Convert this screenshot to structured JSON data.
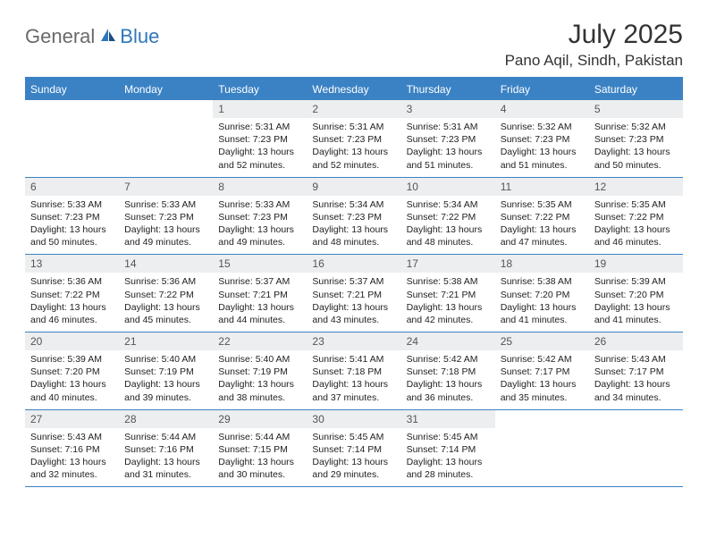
{
  "brand": {
    "general": "General",
    "blue": "Blue"
  },
  "title": "July 2025",
  "location": "Pano Aqil, Sindh, Pakistan",
  "colors": {
    "header_bar": "#3b82c4",
    "daynum_bg": "#eceeef",
    "text": "#333333",
    "logo_gray": "#6a6a6a",
    "logo_blue": "#2f77bb"
  },
  "dow": [
    "Sunday",
    "Monday",
    "Tuesday",
    "Wednesday",
    "Thursday",
    "Friday",
    "Saturday"
  ],
  "weeks": [
    [
      null,
      null,
      {
        "n": "1",
        "sunrise": "Sunrise: 5:31 AM",
        "sunset": "Sunset: 7:23 PM",
        "day": "Daylight: 13 hours and 52 minutes."
      },
      {
        "n": "2",
        "sunrise": "Sunrise: 5:31 AM",
        "sunset": "Sunset: 7:23 PM",
        "day": "Daylight: 13 hours and 52 minutes."
      },
      {
        "n": "3",
        "sunrise": "Sunrise: 5:31 AM",
        "sunset": "Sunset: 7:23 PM",
        "day": "Daylight: 13 hours and 51 minutes."
      },
      {
        "n": "4",
        "sunrise": "Sunrise: 5:32 AM",
        "sunset": "Sunset: 7:23 PM",
        "day": "Daylight: 13 hours and 51 minutes."
      },
      {
        "n": "5",
        "sunrise": "Sunrise: 5:32 AM",
        "sunset": "Sunset: 7:23 PM",
        "day": "Daylight: 13 hours and 50 minutes."
      }
    ],
    [
      {
        "n": "6",
        "sunrise": "Sunrise: 5:33 AM",
        "sunset": "Sunset: 7:23 PM",
        "day": "Daylight: 13 hours and 50 minutes."
      },
      {
        "n": "7",
        "sunrise": "Sunrise: 5:33 AM",
        "sunset": "Sunset: 7:23 PM",
        "day": "Daylight: 13 hours and 49 minutes."
      },
      {
        "n": "8",
        "sunrise": "Sunrise: 5:33 AM",
        "sunset": "Sunset: 7:23 PM",
        "day": "Daylight: 13 hours and 49 minutes."
      },
      {
        "n": "9",
        "sunrise": "Sunrise: 5:34 AM",
        "sunset": "Sunset: 7:23 PM",
        "day": "Daylight: 13 hours and 48 minutes."
      },
      {
        "n": "10",
        "sunrise": "Sunrise: 5:34 AM",
        "sunset": "Sunset: 7:22 PM",
        "day": "Daylight: 13 hours and 48 minutes."
      },
      {
        "n": "11",
        "sunrise": "Sunrise: 5:35 AM",
        "sunset": "Sunset: 7:22 PM",
        "day": "Daylight: 13 hours and 47 minutes."
      },
      {
        "n": "12",
        "sunrise": "Sunrise: 5:35 AM",
        "sunset": "Sunset: 7:22 PM",
        "day": "Daylight: 13 hours and 46 minutes."
      }
    ],
    [
      {
        "n": "13",
        "sunrise": "Sunrise: 5:36 AM",
        "sunset": "Sunset: 7:22 PM",
        "day": "Daylight: 13 hours and 46 minutes."
      },
      {
        "n": "14",
        "sunrise": "Sunrise: 5:36 AM",
        "sunset": "Sunset: 7:22 PM",
        "day": "Daylight: 13 hours and 45 minutes."
      },
      {
        "n": "15",
        "sunrise": "Sunrise: 5:37 AM",
        "sunset": "Sunset: 7:21 PM",
        "day": "Daylight: 13 hours and 44 minutes."
      },
      {
        "n": "16",
        "sunrise": "Sunrise: 5:37 AM",
        "sunset": "Sunset: 7:21 PM",
        "day": "Daylight: 13 hours and 43 minutes."
      },
      {
        "n": "17",
        "sunrise": "Sunrise: 5:38 AM",
        "sunset": "Sunset: 7:21 PM",
        "day": "Daylight: 13 hours and 42 minutes."
      },
      {
        "n": "18",
        "sunrise": "Sunrise: 5:38 AM",
        "sunset": "Sunset: 7:20 PM",
        "day": "Daylight: 13 hours and 41 minutes."
      },
      {
        "n": "19",
        "sunrise": "Sunrise: 5:39 AM",
        "sunset": "Sunset: 7:20 PM",
        "day": "Daylight: 13 hours and 41 minutes."
      }
    ],
    [
      {
        "n": "20",
        "sunrise": "Sunrise: 5:39 AM",
        "sunset": "Sunset: 7:20 PM",
        "day": "Daylight: 13 hours and 40 minutes."
      },
      {
        "n": "21",
        "sunrise": "Sunrise: 5:40 AM",
        "sunset": "Sunset: 7:19 PM",
        "day": "Daylight: 13 hours and 39 minutes."
      },
      {
        "n": "22",
        "sunrise": "Sunrise: 5:40 AM",
        "sunset": "Sunset: 7:19 PM",
        "day": "Daylight: 13 hours and 38 minutes."
      },
      {
        "n": "23",
        "sunrise": "Sunrise: 5:41 AM",
        "sunset": "Sunset: 7:18 PM",
        "day": "Daylight: 13 hours and 37 minutes."
      },
      {
        "n": "24",
        "sunrise": "Sunrise: 5:42 AM",
        "sunset": "Sunset: 7:18 PM",
        "day": "Daylight: 13 hours and 36 minutes."
      },
      {
        "n": "25",
        "sunrise": "Sunrise: 5:42 AM",
        "sunset": "Sunset: 7:17 PM",
        "day": "Daylight: 13 hours and 35 minutes."
      },
      {
        "n": "26",
        "sunrise": "Sunrise: 5:43 AM",
        "sunset": "Sunset: 7:17 PM",
        "day": "Daylight: 13 hours and 34 minutes."
      }
    ],
    [
      {
        "n": "27",
        "sunrise": "Sunrise: 5:43 AM",
        "sunset": "Sunset: 7:16 PM",
        "day": "Daylight: 13 hours and 32 minutes."
      },
      {
        "n": "28",
        "sunrise": "Sunrise: 5:44 AM",
        "sunset": "Sunset: 7:16 PM",
        "day": "Daylight: 13 hours and 31 minutes."
      },
      {
        "n": "29",
        "sunrise": "Sunrise: 5:44 AM",
        "sunset": "Sunset: 7:15 PM",
        "day": "Daylight: 13 hours and 30 minutes."
      },
      {
        "n": "30",
        "sunrise": "Sunrise: 5:45 AM",
        "sunset": "Sunset: 7:14 PM",
        "day": "Daylight: 13 hours and 29 minutes."
      },
      {
        "n": "31",
        "sunrise": "Sunrise: 5:45 AM",
        "sunset": "Sunset: 7:14 PM",
        "day": "Daylight: 13 hours and 28 minutes."
      },
      null,
      null
    ]
  ]
}
